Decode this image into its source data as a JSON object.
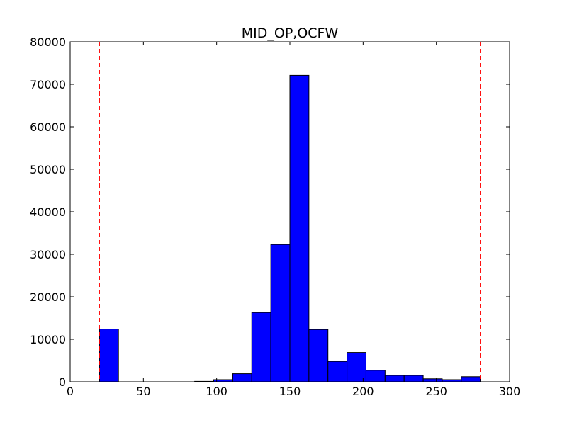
{
  "chart_data": {
    "type": "bar",
    "title": "MID_OP,OCFW",
    "xlabel": "",
    "ylabel": "",
    "xlim": [
      0,
      300
    ],
    "ylim": [
      0,
      80000
    ],
    "xticks": [
      "0",
      "50",
      "100",
      "150",
      "200",
      "250",
      "300"
    ],
    "yticks": [
      "0",
      "10000",
      "20000",
      "30000",
      "40000",
      "50000",
      "60000",
      "70000",
      "80000"
    ],
    "grid": false,
    "legend": "none",
    "bar_color": "#0000ff",
    "bins": [
      {
        "left": 20,
        "right": 33,
        "value": 12400
      },
      {
        "left": 33,
        "right": 46,
        "value": 0
      },
      {
        "left": 46,
        "right": 59,
        "value": 0
      },
      {
        "left": 59,
        "right": 72,
        "value": 0
      },
      {
        "left": 72,
        "right": 85,
        "value": 0
      },
      {
        "left": 85,
        "right": 98,
        "value": 100
      },
      {
        "left": 98,
        "right": 111,
        "value": 500
      },
      {
        "left": 111,
        "right": 124,
        "value": 1900
      },
      {
        "left": 124,
        "right": 137,
        "value": 16300
      },
      {
        "left": 137,
        "right": 150,
        "value": 32300
      },
      {
        "left": 150,
        "right": 163,
        "value": 72100
      },
      {
        "left": 163,
        "right": 176,
        "value": 12300
      },
      {
        "left": 176,
        "right": 189,
        "value": 4800
      },
      {
        "left": 189,
        "right": 202,
        "value": 6900
      },
      {
        "left": 202,
        "right": 215,
        "value": 2700
      },
      {
        "left": 215,
        "right": 228,
        "value": 1500
      },
      {
        "left": 228,
        "right": 241,
        "value": 1500
      },
      {
        "left": 241,
        "right": 254,
        "value": 700
      },
      {
        "left": 254,
        "right": 267,
        "value": 500
      },
      {
        "left": 267,
        "right": 280,
        "value": 1200
      }
    ],
    "reference_lines": [
      {
        "x": 20,
        "color": "#ff0000",
        "style": "dashed"
      },
      {
        "x": 280,
        "color": "#ff0000",
        "style": "dashed"
      }
    ]
  }
}
